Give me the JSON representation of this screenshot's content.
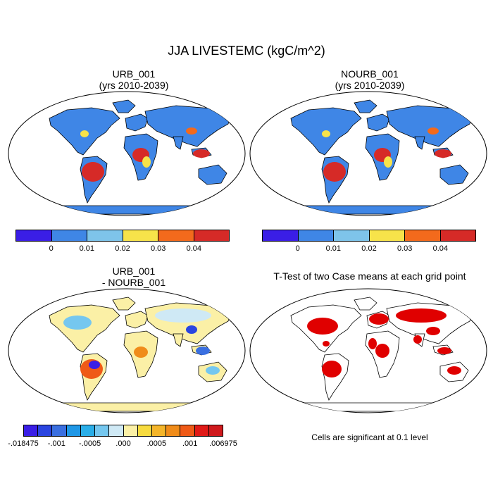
{
  "figure": {
    "title": "JJA LIVESTEMC (kgC/m^2)"
  },
  "panels": [
    {
      "title_line1": "URB_001",
      "title_line2": "(yrs 2010-2039)"
    },
    {
      "title_line1": "NOURB_001",
      "title_line2": "(yrs 2010-2039)"
    },
    {
      "title_line1": "URB_001",
      "title_line2": "- NOURB_001"
    },
    {
      "title_line1": "T-Test of two Case means at each grid point",
      "title_line2": ""
    }
  ],
  "colorbar_abs": {
    "colors": [
      "#3a1ee6",
      "#3f86e6",
      "#7ec4ea",
      "#f7e34a",
      "#f36a1c",
      "#d62a27"
    ],
    "tick_labels": [
      "0",
      "0.01",
      "0.02",
      "0.03",
      "0.04"
    ]
  },
  "colorbar_diff": {
    "colors": [
      "#3a1ee6",
      "#2a45e0",
      "#3a6fe0",
      "#1f97e6",
      "#2aaee8",
      "#75c7ef",
      "#cfe9f5",
      "#fbf0a6",
      "#f7db3f",
      "#f4b52a",
      "#f08c1a",
      "#ef5a17",
      "#e01a17",
      "#d01a1d"
    ],
    "tick_labels": [
      "-.018475",
      "-.001",
      "-.0005",
      ".000",
      ".0005",
      ".001",
      ".006975"
    ]
  },
  "ttest": {
    "note": "Cells are significant at 0.1 level"
  },
  "map_colors": {
    "ocean": "#ffffff",
    "land_base": "#3f86e6",
    "tropics": "#d62a27",
    "diff_land": "#fbf0a6",
    "significant": "#e00000"
  }
}
